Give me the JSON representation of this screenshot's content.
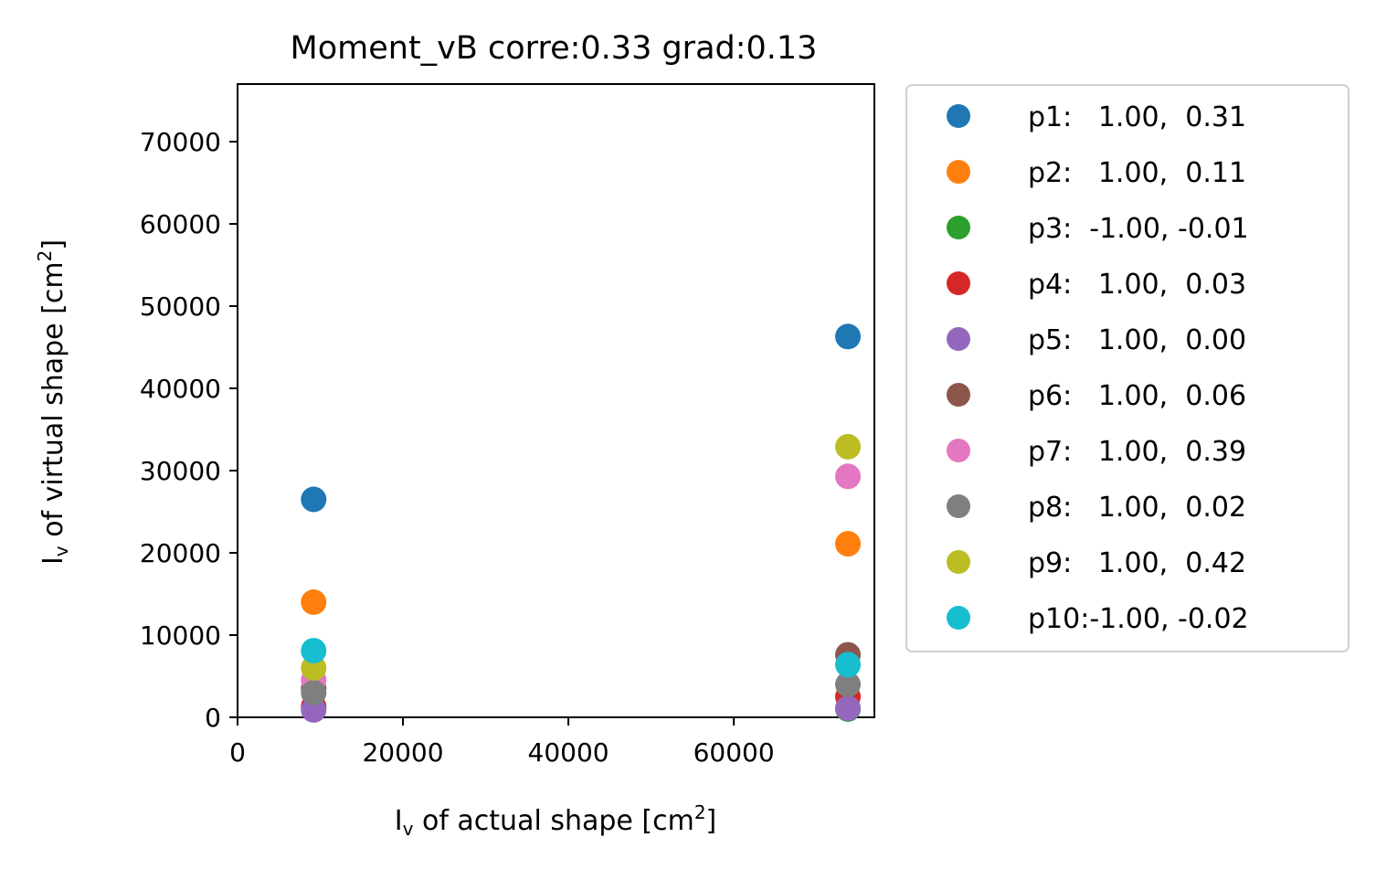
{
  "chart_data": {
    "type": "scatter",
    "title": "Moment_vB corre:0.33 grad:0.13",
    "xlabel": {
      "main": "I",
      "sub": "v",
      "rest": " of actual shape [cm",
      "sup": "2",
      "end": "]"
    },
    "ylabel": {
      "main": "I",
      "sub": "v",
      "rest": " of virtual shape [cm",
      "sup": "2",
      "end": "]"
    },
    "xlim": [
      0,
      77000
    ],
    "ylim": [
      0,
      77000
    ],
    "xticks": [
      0,
      20000,
      40000,
      60000
    ],
    "xtick_labels": [
      "0",
      "20000",
      "40000",
      "60000"
    ],
    "yticks": [
      0,
      10000,
      20000,
      30000,
      40000,
      50000,
      60000,
      70000
    ],
    "ytick_labels": [
      "0",
      "10000",
      "20000",
      "30000",
      "40000",
      "50000",
      "60000",
      "70000"
    ],
    "legend_position": "outside-right",
    "series": [
      {
        "name": "p1",
        "label": "p1:   1.00,  0.31",
        "color": "#1f77b4",
        "x": [
          9200,
          73800
        ],
        "y": [
          26500,
          46300
        ]
      },
      {
        "name": "p2",
        "label": "p2:   1.00,  0.11",
        "color": "#ff7f0e",
        "x": [
          9200,
          73800
        ],
        "y": [
          14000,
          21100
        ]
      },
      {
        "name": "p3",
        "label": "p3:  -1.00, -0.01",
        "color": "#2ca02c",
        "x": [
          9200,
          73800
        ],
        "y": [
          1100,
          1000
        ]
      },
      {
        "name": "p4",
        "label": "p4:   1.00,  0.03",
        "color": "#d62728",
        "x": [
          9200,
          73800
        ],
        "y": [
          1300,
          2500
        ]
      },
      {
        "name": "p5",
        "label": "p5:   1.00,  0.00",
        "color": "#9467bd",
        "x": [
          9200,
          73800
        ],
        "y": [
          900,
          1100
        ]
      },
      {
        "name": "p6",
        "label": "p6:   1.00,  0.06",
        "color": "#8c564b",
        "x": [
          9200,
          73800
        ],
        "y": [
          3500,
          7600
        ]
      },
      {
        "name": "p7",
        "label": "p7:   1.00,  0.39",
        "color": "#e377c2",
        "x": [
          9200,
          73800
        ],
        "y": [
          4500,
          29300
        ]
      },
      {
        "name": "p8",
        "label": "p8:   1.00,  0.02",
        "color": "#7f7f7f",
        "x": [
          9200,
          73800
        ],
        "y": [
          3000,
          4000
        ]
      },
      {
        "name": "p9",
        "label": "p9:   1.00,  0.42",
        "color": "#bcbd22",
        "x": [
          9200,
          73800
        ],
        "y": [
          6000,
          32900
        ]
      },
      {
        "name": "p10",
        "label": "p10:-1.00, -0.02",
        "color": "#17becf",
        "x": [
          9200,
          73800
        ],
        "y": [
          8100,
          6400
        ]
      }
    ]
  }
}
